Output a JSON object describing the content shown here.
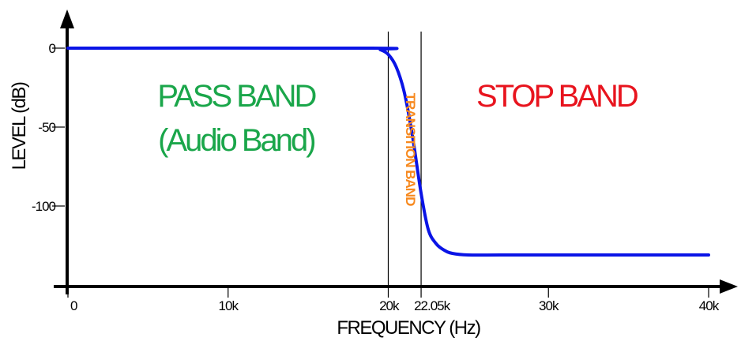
{
  "chart_data": {
    "type": "line",
    "xlabel": "FREQUENCY (Hz)",
    "ylabel": "LEVEL (dB)",
    "xlim": [
      0,
      40000
    ],
    "ylim": [
      -150,
      0
    ],
    "x_ticks": [
      {
        "value": 0,
        "label": "0"
      },
      {
        "value": 10000,
        "label": "10k"
      },
      {
        "value": 20000,
        "label": "20k"
      },
      {
        "value": 22050,
        "label": "22.05k"
      },
      {
        "value": 30000,
        "label": "30k"
      },
      {
        "value": 40000,
        "label": "40k"
      }
    ],
    "y_ticks": [
      {
        "value": 0,
        "label": "0"
      },
      {
        "value": -50,
        "label": "-50"
      },
      {
        "value": -100,
        "label": "-100"
      }
    ],
    "vertical_markers": [
      20000,
      22050
    ],
    "series": [
      {
        "x": [
          0,
          19000,
          19500,
          20000,
          20500,
          21000,
          21500,
          22050,
          22500,
          23000,
          23500,
          24000,
          25000,
          27000,
          30000,
          35000,
          40000
        ],
        "y": [
          0,
          0,
          -1,
          -4,
          -12,
          -28,
          -55,
          -92,
          -115,
          -124,
          -128,
          -130,
          -131,
          -131,
          -131,
          -131,
          -131
        ]
      }
    ],
    "annotations": [
      {
        "text": "PASS BAND",
        "color": "#1aa64a",
        "x": 10500,
        "y": -30
      },
      {
        "text": "(Audio Band)",
        "color": "#1aa64a",
        "x": 10500,
        "y": -58
      },
      {
        "text": "STOP BAND",
        "color": "#e8141e",
        "x": 30500,
        "y": -30
      },
      {
        "text": "TRANSITION BAND",
        "color": "#f7891e",
        "x": 21100,
        "y": -64,
        "rotate": 90
      }
    ],
    "curve_color": "#0a14e6",
    "grid": false
  }
}
